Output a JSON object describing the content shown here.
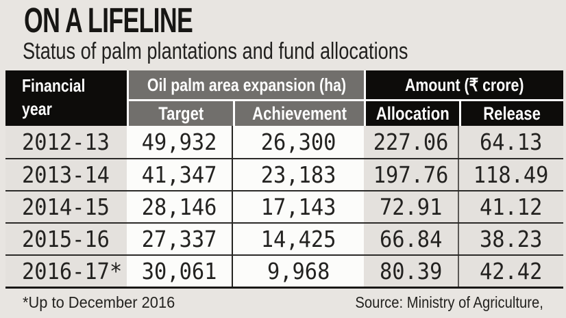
{
  "title": "ON A LIFELINE",
  "subtitle": "Status of palm plantations and fund allocations",
  "table": {
    "corner_header": "Financial year",
    "group1": "Oil palm area expansion (ha)",
    "group2": "Amount (₹ crore)",
    "sub_headers": [
      "Target",
      "Achievement",
      "Allocation",
      "Release"
    ]
  },
  "chart_data": {
    "type": "table",
    "title": "ON A LIFELINE",
    "subtitle": "Status of palm plantations and fund allocations",
    "column_groups": [
      {
        "label": "Financial year",
        "columns": []
      },
      {
        "label": "Oil palm area expansion (ha)",
        "unit": "ha",
        "columns": [
          "Target",
          "Achievement"
        ]
      },
      {
        "label": "Amount (₹ crore)",
        "unit": "₹ crore",
        "columns": [
          "Allocation",
          "Release"
        ]
      }
    ],
    "rows": [
      {
        "year": "2012-13",
        "target": "49,932",
        "achievement": "26,300",
        "allocation": "227.06",
        "release": "64.13"
      },
      {
        "year": "2013-14",
        "target": "41,347",
        "achievement": "23,183",
        "allocation": "197.76",
        "release": "118.49"
      },
      {
        "year": "2014-15",
        "target": "28,146",
        "achievement": "17,143",
        "allocation": "72.91",
        "release": "41.12"
      },
      {
        "year": "2015-16",
        "target": "27,337",
        "achievement": "14,425",
        "allocation": "66.84",
        "release": "38.23"
      },
      {
        "year": "2016-17*",
        "target": "30,061",
        "achievement": "9,968",
        "allocation": "80.39",
        "release": "42.42"
      }
    ],
    "values_numeric": {
      "target": [
        49932,
        41347,
        28146,
        27337,
        30061
      ],
      "achievement": [
        26300,
        23183,
        17143,
        14425,
        9968
      ],
      "allocation": [
        227.06,
        197.76,
        72.91,
        66.84,
        80.39
      ],
      "release": [
        64.13,
        118.49,
        41.12,
        38.23,
        42.42
      ]
    }
  },
  "footer": {
    "note": "*Up to December 2016",
    "source": "Source: Ministry of Agriculture,"
  },
  "colors": {
    "page_bg": "#e8e5e1",
    "header_black": "#0d0c0a",
    "header_gray": "#716f6c",
    "cell_light": "#e4e1dd",
    "cell_white": "#fcfcfa",
    "text": "#1f1e1c"
  }
}
